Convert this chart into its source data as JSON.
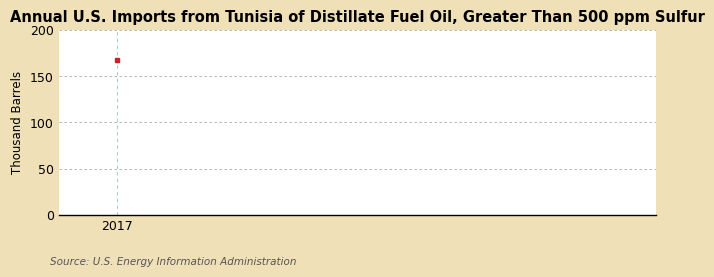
{
  "title": "Annual U.S. Imports from Tunisia of Distillate Fuel Oil, Greater Than 500 ppm Sulfur",
  "ylabel": "Thousand Barrels",
  "source": "Source: U.S. Energy Information Administration",
  "x_data": [
    2017
  ],
  "y_data": [
    168
  ],
  "marker_color": "#cc2222",
  "marker_style": "s",
  "marker_size": 3,
  "xlim": [
    2016.3,
    2023.5
  ],
  "ylim": [
    0,
    200
  ],
  "yticks": [
    0,
    50,
    100,
    150,
    200
  ],
  "xticks": [
    2017
  ],
  "fig_background_color": "#f0e0b8",
  "ax_background_color": "#ffffff",
  "grid_color": "#aaaaaa",
  "vline_color": "#aacccc",
  "title_fontsize": 10.5,
  "label_fontsize": 8.5,
  "tick_fontsize": 9,
  "source_fontsize": 7.5
}
